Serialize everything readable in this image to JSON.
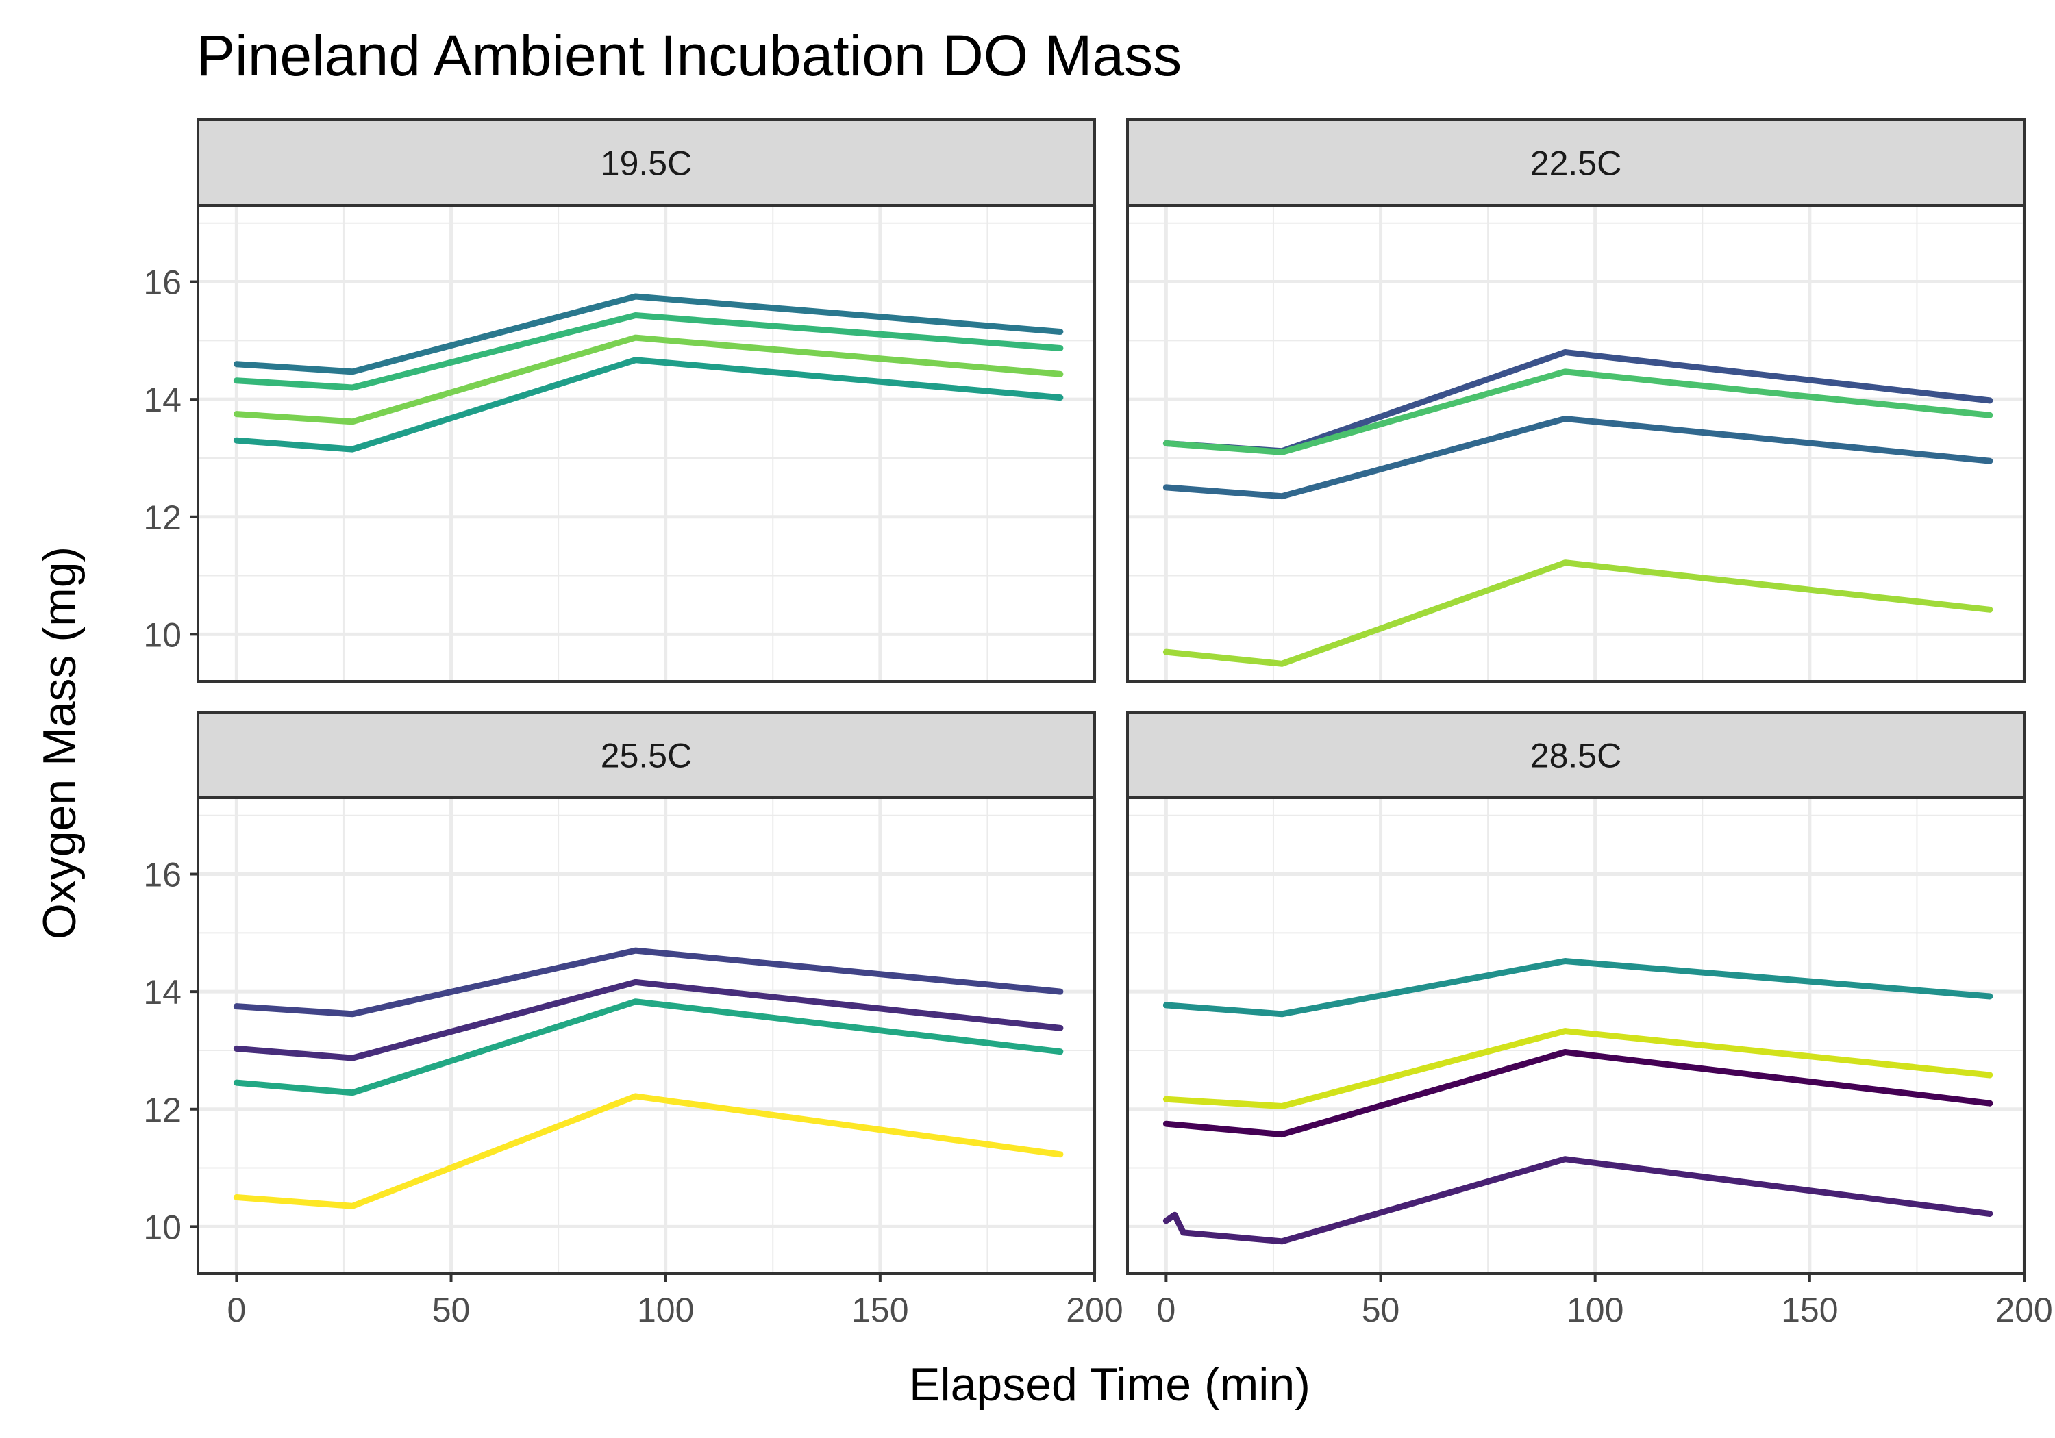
{
  "chart_data": {
    "type": "line",
    "title": "Pineland Ambient Incubation DO Mass",
    "xlabel": "Elapsed Time (min)",
    "ylabel": "Oxygen Mass (mg)",
    "xlim": [
      -9,
      200
    ],
    "ylim": [
      9.2,
      17.3
    ],
    "x_ticks": [
      0,
      50,
      100,
      150,
      200
    ],
    "x_tick_labels": [
      "0",
      "50",
      "100",
      "150",
      "200"
    ],
    "y_ticks": [
      10,
      12,
      14,
      16
    ],
    "y_tick_labels": [
      "10",
      "12",
      "14",
      "16"
    ],
    "grid": true,
    "legend": "none",
    "facets": [
      {
        "label": "19.5C",
        "series": [
          {
            "color": "#2a788e",
            "x": [
              0,
              27,
              93,
              192
            ],
            "y": [
              14.6,
              14.47,
              15.75,
              15.15
            ]
          },
          {
            "color": "#35b779",
            "x": [
              0,
              27,
              93,
              192
            ],
            "y": [
              14.32,
              14.2,
              15.43,
              14.87
            ]
          },
          {
            "color": "#7ad151",
            "x": [
              0,
              27,
              93,
              192
            ],
            "y": [
              13.75,
              13.62,
              15.05,
              14.43
            ]
          },
          {
            "color": "#1f9e89",
            "x": [
              0,
              27,
              93,
              192
            ],
            "y": [
              13.3,
              13.15,
              14.67,
              14.03
            ]
          }
        ]
      },
      {
        "label": "22.5C",
        "series": [
          {
            "color": "#3b528b",
            "x": [
              0,
              27,
              93,
              192
            ],
            "y": [
              13.25,
              13.12,
              14.8,
              13.98
            ]
          },
          {
            "color": "#4ac16d",
            "x": [
              0,
              27,
              93,
              192
            ],
            "y": [
              13.25,
              13.1,
              14.47,
              13.73
            ]
          },
          {
            "color": "#31688e",
            "x": [
              0,
              27,
              93,
              192
            ],
            "y": [
              12.5,
              12.35,
              13.67,
              12.95
            ]
          },
          {
            "color": "#a0da39",
            "x": [
              0,
              27,
              93,
              192
            ],
            "y": [
              9.7,
              9.5,
              11.22,
              10.42
            ]
          }
        ]
      },
      {
        "label": "25.5C",
        "series": [
          {
            "color": "#414487",
            "x": [
              0,
              27,
              93,
              192
            ],
            "y": [
              13.75,
              13.62,
              14.7,
              14.0
            ]
          },
          {
            "color": "#472d7b",
            "x": [
              0,
              27,
              93,
              192
            ],
            "y": [
              13.03,
              12.87,
              14.16,
              13.38
            ]
          },
          {
            "color": "#22a884",
            "x": [
              0,
              27,
              93,
              192
            ],
            "y": [
              12.45,
              12.28,
              13.83,
              12.98
            ]
          },
          {
            "color": "#fde725",
            "x": [
              0,
              27,
              93,
              192
            ],
            "y": [
              10.5,
              10.35,
              12.22,
              11.23
            ]
          }
        ]
      },
      {
        "label": "28.5C",
        "series": [
          {
            "color": "#21918c",
            "x": [
              0,
              27,
              93,
              192
            ],
            "y": [
              13.77,
              13.62,
              14.52,
              13.92
            ]
          },
          {
            "color": "#d2e21b",
            "x": [
              0,
              27,
              93,
              192
            ],
            "y": [
              12.17,
              12.05,
              13.33,
              12.58
            ]
          },
          {
            "color": "#440154",
            "x": [
              0,
              27,
              93,
              192
            ],
            "y": [
              11.75,
              11.57,
              12.97,
              12.1
            ]
          },
          {
            "color": "#482173",
            "x": [
              0,
              2,
              4,
              27,
              93,
              192
            ],
            "y": [
              10.1,
              10.2,
              9.9,
              9.75,
              11.15,
              10.22
            ]
          }
        ]
      }
    ]
  }
}
